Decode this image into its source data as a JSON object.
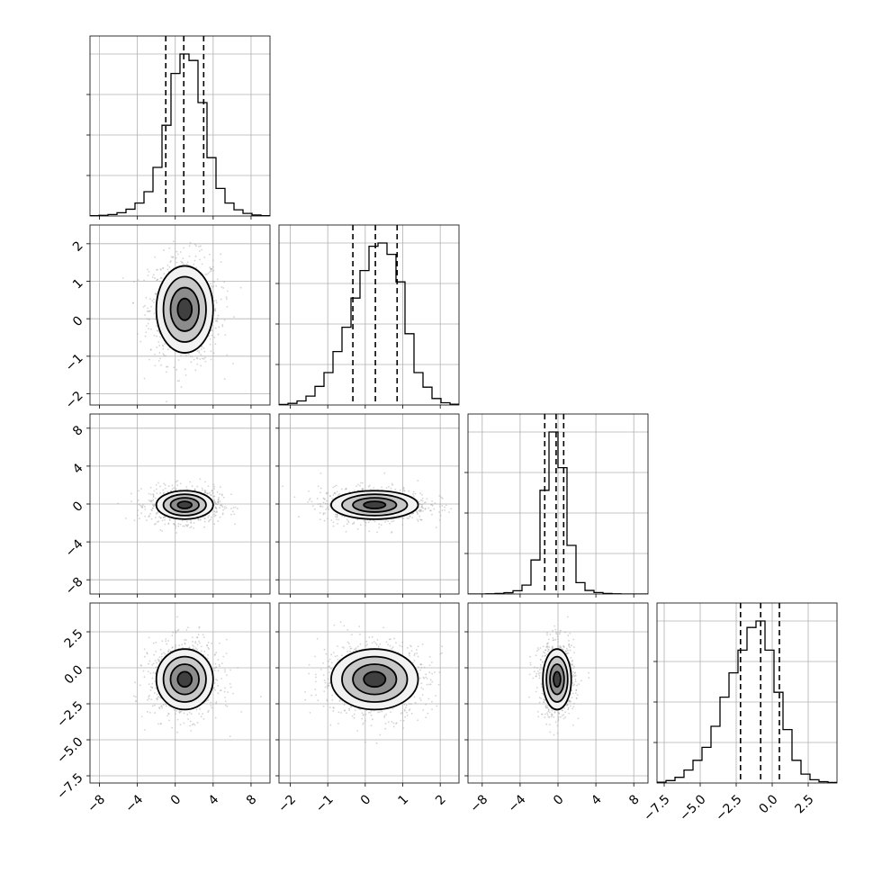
{
  "chart_data": {
    "type": "corner",
    "grid": true,
    "parameters": [
      {
        "range": [
          -9,
          10
        ],
        "ticks": [
          -8,
          -4,
          0,
          4,
          8
        ],
        "tick_labels": [
          "−8",
          "−4",
          "0",
          "4",
          "8"
        ],
        "mean": 1.0,
        "sigma": 1.5,
        "quantiles": [
          -1.0,
          0.9,
          3.0
        ]
      },
      {
        "range": [
          -2.3,
          2.5
        ],
        "ticks": [
          -2,
          -1,
          0,
          1,
          2
        ],
        "tick_labels": [
          "−2",
          "−1",
          "0",
          "1",
          "2"
        ],
        "mean": 0.25,
        "sigma": 0.58,
        "quantiles": [
          -0.33,
          0.27,
          0.85
        ]
      },
      {
        "range": [
          -9.5,
          9.5
        ],
        "ticks": [
          -8,
          -4,
          0,
          4,
          8
        ],
        "tick_labels": [
          "−8",
          "−4",
          "0",
          "4",
          "8"
        ],
        "mean": -0.1,
        "sigma": 0.75,
        "quantiles": [
          -1.4,
          -0.2,
          0.6
        ]
      },
      {
        "range": [
          -8.0,
          4.5
        ],
        "ticks": [
          -7.5,
          -5.0,
          -2.5,
          0.0,
          2.5
        ],
        "tick_labels": [
          "−7.5",
          "−5.0",
          "−2.5",
          "0.0",
          "2.5"
        ],
        "mean": -0.8,
        "sigma": 1.05,
        "quantiles": [
          -2.2,
          -0.8,
          0.5
        ]
      }
    ],
    "histograms": [
      {
        "param": 0,
        "bin_edges": [
          -9,
          -8.05,
          -7.1,
          -6.15,
          -5.2,
          -4.25,
          -3.3,
          -2.35,
          -1.4,
          -0.45,
          0.5,
          1.45,
          2.4,
          3.35,
          4.3,
          5.25,
          6.2,
          7.15,
          8.1,
          9.05,
          10
        ],
        "counts": [
          2,
          4,
          9,
          20,
          42,
          80,
          150,
          300,
          560,
          880,
          1000,
          960,
          700,
          360,
          170,
          80,
          38,
          16,
          6,
          2
        ]
      },
      {
        "param": 1,
        "bin_edges": [
          -2.3,
          -2.06,
          -1.82,
          -1.58,
          -1.34,
          -1.1,
          -0.86,
          -0.62,
          -0.38,
          -0.14,
          0.1,
          0.34,
          0.58,
          0.82,
          1.06,
          1.3,
          1.54,
          1.78,
          2.02,
          2.26,
          2.5
        ],
        "counts": [
          3,
          10,
          25,
          55,
          115,
          200,
          330,
          480,
          660,
          830,
          980,
          1000,
          930,
          760,
          440,
          200,
          110,
          40,
          14,
          5
        ]
      },
      {
        "param": 2,
        "bin_edges": [
          -9.5,
          -8.55,
          -7.6,
          -6.65,
          -5.7,
          -4.75,
          -3.8,
          -2.85,
          -1.9,
          -0.95,
          0.0,
          0.95,
          1.9,
          2.85,
          3.8,
          4.75,
          5.7,
          6.65,
          7.6,
          8.55,
          9.5
        ],
        "counts": [
          0,
          0,
          1,
          3,
          8,
          20,
          55,
          210,
          640,
          1000,
          780,
          300,
          70,
          22,
          9,
          3,
          1,
          0,
          0,
          0
        ]
      },
      {
        "param": 3,
        "bin_edges": [
          -8.0,
          -7.375,
          -6.75,
          -6.125,
          -5.5,
          -4.875,
          -4.25,
          -3.625,
          -3.0,
          -2.375,
          -1.75,
          -1.125,
          -0.5,
          0.125,
          0.75,
          1.375,
          2.0,
          2.625,
          3.25,
          3.875,
          4.5
        ],
        "counts": [
          5,
          15,
          35,
          80,
          140,
          220,
          350,
          530,
          680,
          820,
          960,
          1000,
          820,
          560,
          330,
          140,
          55,
          20,
          8,
          3
        ]
      }
    ],
    "contour_levels_sigma": [
      0.5,
      1.0,
      1.5,
      2.0
    ]
  }
}
